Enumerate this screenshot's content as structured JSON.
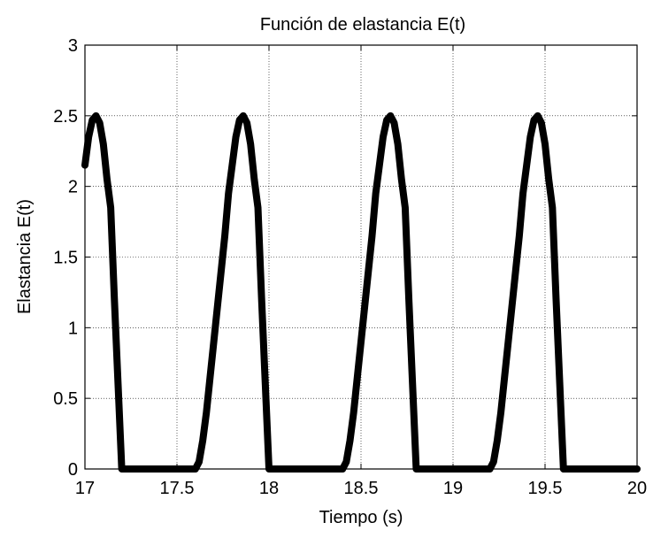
{
  "chart_data": {
    "type": "line",
    "title": "Función de elastancia E(t)",
    "xlabel": "Tiempo (s)",
    "ylabel": "Elastancia E(t)",
    "xlim": [
      17,
      20
    ],
    "ylim": [
      0,
      3
    ],
    "xticks": [
      17,
      17.5,
      18,
      18.5,
      19,
      19.5,
      20
    ],
    "xtick_labels": [
      "17",
      "17.5",
      "18",
      "18.5",
      "19",
      "19.5",
      "20"
    ],
    "yticks": [
      0,
      0.5,
      1,
      1.5,
      2,
      2.5,
      3
    ],
    "ytick_labels": [
      "0",
      "0.5",
      "1",
      "1.5",
      "2",
      "2.5",
      "3"
    ],
    "grid": true,
    "line_color": "#000000",
    "series": [
      {
        "x": [
          17.0,
          17.02,
          17.04,
          17.06,
          17.08,
          17.1,
          17.12,
          17.14,
          17.16,
          17.18,
          17.2,
          17.4,
          17.6,
          17.62,
          17.64,
          17.66,
          17.68,
          17.7,
          17.72,
          17.74,
          17.76,
          17.78,
          17.8,
          17.82,
          17.84,
          17.86,
          17.88,
          17.9,
          17.92,
          17.94,
          17.96,
          17.98,
          18.0,
          18.2,
          18.4,
          18.42,
          18.44,
          18.46,
          18.48,
          18.5,
          18.52,
          18.54,
          18.56,
          18.58,
          18.6,
          18.62,
          18.64,
          18.66,
          18.68,
          18.7,
          18.72,
          18.74,
          18.76,
          18.78,
          18.8,
          19.0,
          19.2,
          19.22,
          19.24,
          19.26,
          19.28,
          19.3,
          19.32,
          19.34,
          19.36,
          19.38,
          19.4,
          19.42,
          19.44,
          19.46,
          19.48,
          19.5,
          19.52,
          19.54,
          19.56,
          19.58,
          19.6,
          19.8,
          20.0
        ],
        "y": [
          2.15,
          2.35,
          2.47,
          2.5,
          2.45,
          2.3,
          2.05,
          1.85,
          1.2,
          0.6,
          0.0,
          0.0,
          0.0,
          0.05,
          0.2,
          0.4,
          0.65,
          0.9,
          1.15,
          1.4,
          1.65,
          1.95,
          2.15,
          2.35,
          2.47,
          2.5,
          2.45,
          2.3,
          2.05,
          1.85,
          1.2,
          0.6,
          0.0,
          0.0,
          0.0,
          0.05,
          0.2,
          0.4,
          0.65,
          0.9,
          1.15,
          1.4,
          1.65,
          1.95,
          2.15,
          2.35,
          2.47,
          2.5,
          2.45,
          2.3,
          2.05,
          1.85,
          1.2,
          0.6,
          0.0,
          0.0,
          0.0,
          0.05,
          0.2,
          0.4,
          0.65,
          0.9,
          1.15,
          1.4,
          1.65,
          1.95,
          2.15,
          2.35,
          2.47,
          2.5,
          2.45,
          2.3,
          2.05,
          1.85,
          1.2,
          0.6,
          0.0,
          0.0,
          0.0
        ]
      }
    ]
  }
}
